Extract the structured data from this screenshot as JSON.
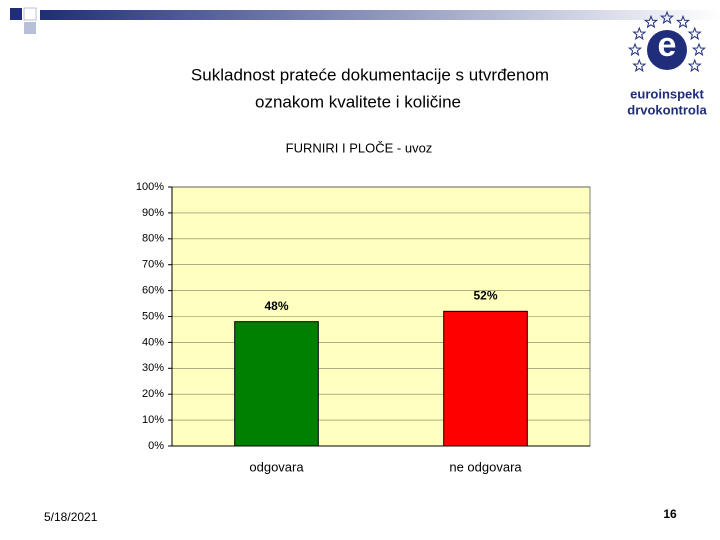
{
  "slide_title": [
    "Sukladnost prateće dokumentacije s utvrđenom",
    "oznakom kvalitete i količine"
  ],
  "logo": {
    "letter": "e",
    "line1": "euroinspekt",
    "line2": "drvokontrola"
  },
  "chart_data": {
    "type": "bar",
    "title": "FURNIRI I PLOČE - uvoz",
    "categories": [
      "odgovara",
      "ne odgovara"
    ],
    "values": [
      48,
      52
    ],
    "value_labels": [
      "48%",
      "52%"
    ],
    "colors": [
      "#008000",
      "#ff0000"
    ],
    "ylim": [
      0,
      100
    ],
    "yticks": [
      {
        "value": 0,
        "label": "0%"
      },
      {
        "value": 10,
        "label": "10%"
      },
      {
        "value": 20,
        "label": "20%"
      },
      {
        "value": 30,
        "label": "30%"
      },
      {
        "value": 40,
        "label": "40%"
      },
      {
        "value": 50,
        "label": "50%"
      },
      {
        "value": 60,
        "label": "60%"
      },
      {
        "value": 70,
        "label": "70%"
      },
      {
        "value": 80,
        "label": "80%"
      },
      {
        "value": 90,
        "label": "90%"
      },
      {
        "value": 100,
        "label": "100%"
      }
    ],
    "plot_background": "#ffffc0",
    "grid": true
  },
  "footer": {
    "date": "5/18/2021",
    "page": "16"
  }
}
